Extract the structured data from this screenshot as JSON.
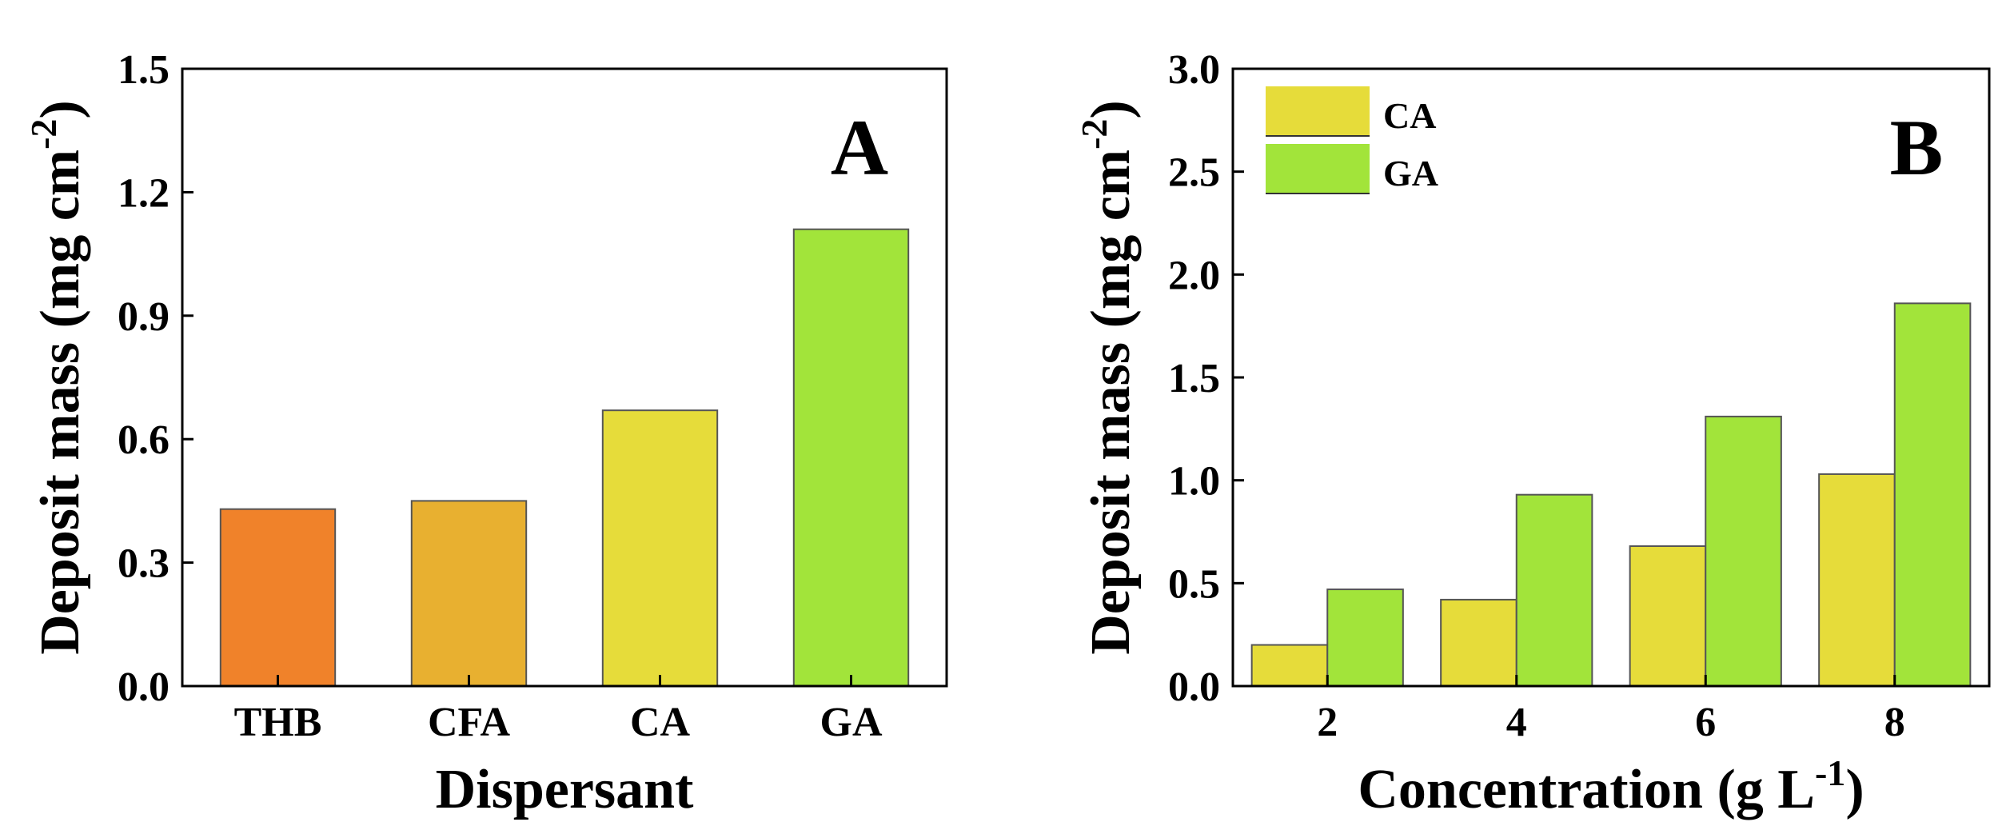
{
  "chart_data": [
    {
      "type": "bar",
      "panel_label": "A",
      "title": "",
      "xlabel": "Dispersant",
      "ylabel": "Deposit mass (mg cm",
      "ylabel_sup": "-2",
      "ylabel_close": ")",
      "categories": [
        "THB",
        "CFA",
        "CA",
        "GA"
      ],
      "values": [
        0.43,
        0.45,
        0.67,
        1.11
      ],
      "colors": [
        "#f0822a",
        "#e8b030",
        "#e6dc3a",
        "#a2e43a"
      ],
      "ylim": [
        0,
        1.5
      ],
      "yticks": [
        "0.0",
        "0.3",
        "0.6",
        "0.9",
        "1.2",
        "1.5"
      ],
      "ytick_values": [
        0,
        0.3,
        0.6,
        0.9,
        1.2,
        1.5
      ],
      "grid": false,
      "legend": null
    },
    {
      "type": "bar",
      "panel_label": "B",
      "title": "",
      "xlabel": "Concentration (g L",
      "xlabel_sup": "-1",
      "xlabel_close": ")",
      "ylabel": "Deposit mass (mg cm",
      "ylabel_sup": "-2",
      "ylabel_close": ")",
      "categories": [
        "2",
        "4",
        "6",
        "8"
      ],
      "series": [
        {
          "name": "CA",
          "color": "#e6dc3a",
          "values": [
            0.2,
            0.42,
            0.68,
            1.03
          ]
        },
        {
          "name": "GA",
          "color": "#a2e43a",
          "values": [
            0.47,
            0.93,
            1.31,
            1.86
          ]
        }
      ],
      "ylim": [
        0,
        3.0
      ],
      "yticks": [
        "0.0",
        "0.5",
        "1.0",
        "1.5",
        "2.0",
        "2.5",
        "3.0"
      ],
      "ytick_values": [
        0,
        0.5,
        1.0,
        1.5,
        2.0,
        2.5,
        3.0
      ],
      "grid": false,
      "legend": "top-left"
    }
  ]
}
